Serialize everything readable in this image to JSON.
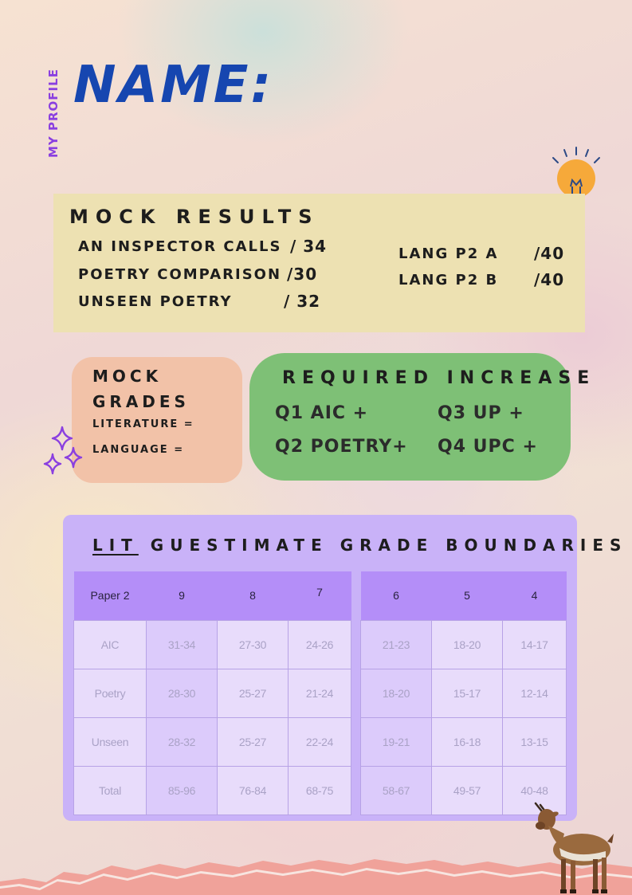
{
  "header": {
    "profile_label": "MY PROFILE",
    "name_label": "NAME:"
  },
  "icons": {
    "bulb": "lightbulb-icon",
    "sparkles": "sparkles-icon",
    "goat": "goat-illustration",
    "paper": "torn-paper-decoration"
  },
  "colors": {
    "results_bg": "#ede1b2",
    "grades_bg": "#f2c2a8",
    "increase_bg": "#7ec076",
    "boundaries_bg": "#c9b2f8",
    "title_blue": "#1646b0",
    "profile_purple": "#8a3fe0"
  },
  "mock_results": {
    "title": "MOCK RESULTS",
    "left": [
      {
        "label": "AN INSPECTOR CALLS",
        "score": "/ 34"
      },
      {
        "label": "POETRY COMPARISON",
        "score": "/30"
      },
      {
        "label": "UNSEEN POETRY",
        "score": "/ 32"
      }
    ],
    "right": [
      {
        "label": "LANG P2 A",
        "score": "/40"
      },
      {
        "label": "LANG P2 B",
        "score": "/40"
      }
    ]
  },
  "mock_grades": {
    "title": "MOCK GRADES",
    "literature": "LITERATURE  =",
    "language": "LANGUAGE ="
  },
  "required_increase": {
    "title": "REQUIRED INCREASE",
    "q1": "Q1 AIC +",
    "q2": "Q2 POETRY+",
    "q3": "Q3 UP +",
    "q4": "Q4  UPC +"
  },
  "boundaries": {
    "title_prefix": "LIT",
    "title_rest": "GUESTIMATE GRADE BOUNDARIES",
    "left_headers": [
      "Paper 2",
      "9",
      "8",
      "7"
    ],
    "left_rows": [
      [
        "AIC",
        "31-34",
        "27-30",
        "24-26"
      ],
      [
        "Poetry",
        "28-30",
        "25-27",
        "21-24"
      ],
      [
        "Unseen",
        "28-32",
        "25-27",
        "22-24"
      ],
      [
        "Total",
        "85-96",
        "76-84",
        "68-75"
      ]
    ],
    "right_headers": [
      "6",
      "5",
      "4"
    ],
    "right_rows": [
      [
        "21-23",
        "18-20",
        "14-17"
      ],
      [
        "18-20",
        "15-17",
        "12-14"
      ],
      [
        "19-21",
        "16-18",
        "13-15"
      ],
      [
        "58-67",
        "49-57",
        "40-48"
      ]
    ]
  }
}
